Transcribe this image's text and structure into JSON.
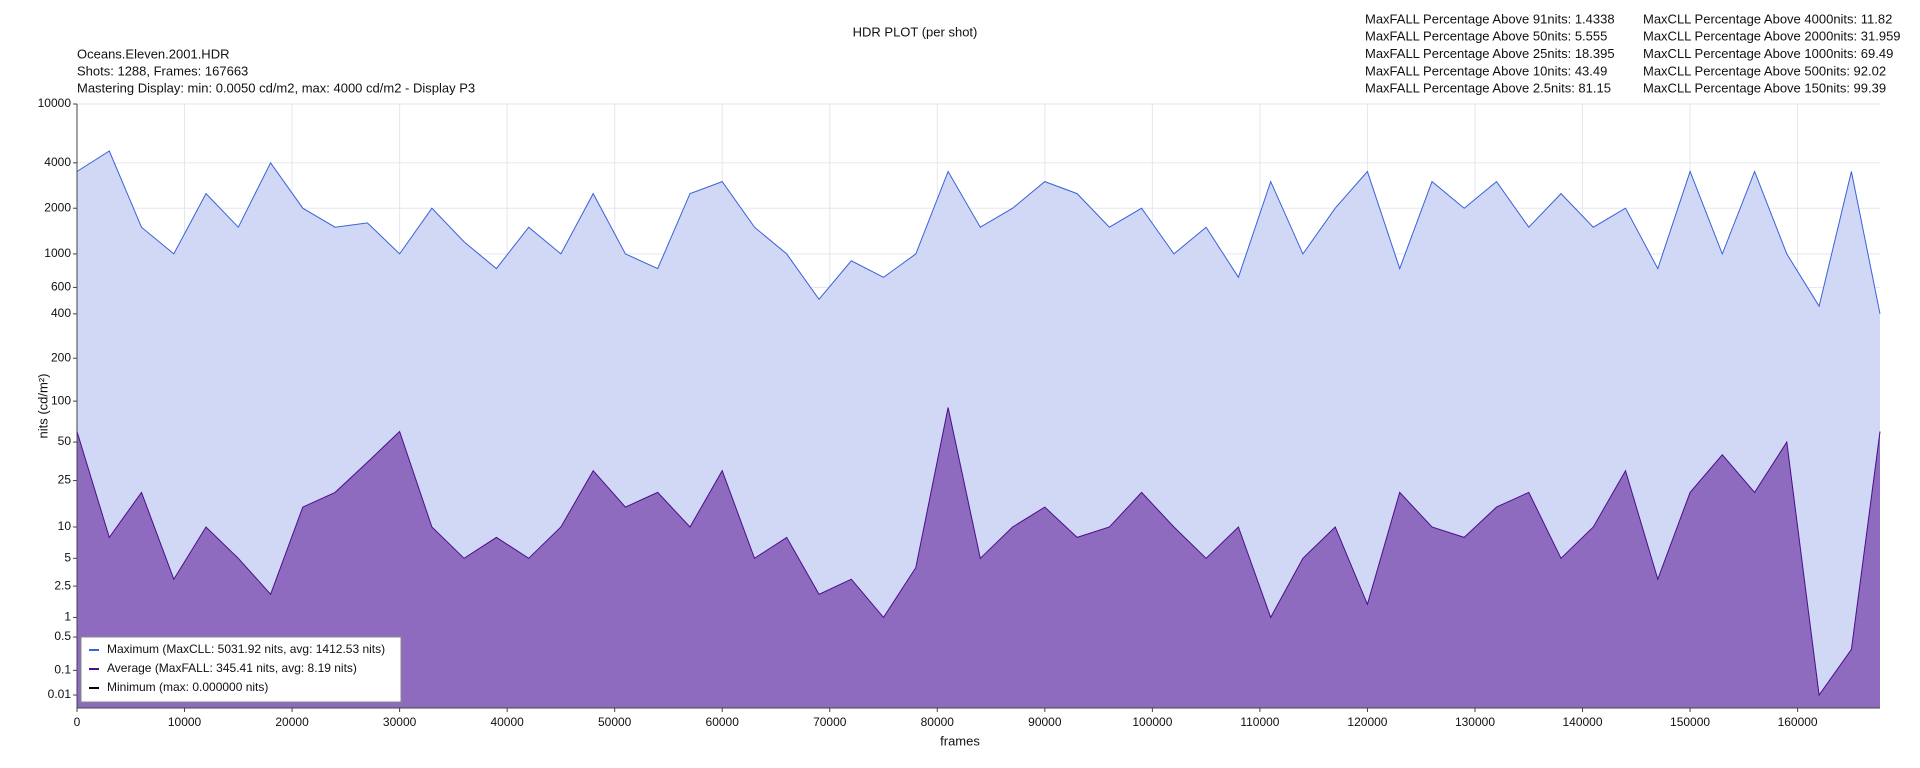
{
  "chart_data": {
    "type": "area",
    "title": "HDR PLOT (per shot)",
    "info": [
      "Oceans.Eleven.2001.HDR",
      "Shots:  1288, Frames: 167663",
      "Mastering Display: min: 0.0050 cd/m2, max: 4000 cd/m2 - Display P3"
    ],
    "maxfall_stats": [
      "MaxFALL Percentage Above  91nits: 1.4338",
      "MaxFALL Percentage Above  50nits: 5.555",
      "MaxFALL Percentage Above  25nits: 18.395",
      "MaxFALL Percentage Above  10nits: 43.49",
      "MaxFALL Percentage Above 2.5nits: 81.15"
    ],
    "maxcll_stats": [
      "MaxCLL Percentage Above 4000nits: 11.82",
      "MaxCLL Percentage Above 2000nits: 31.959",
      "MaxCLL Percentage Above 1000nits: 69.49",
      "MaxCLL Percentage Above   500nits: 92.02",
      "MaxCLL Percentage Above   150nits: 99.39"
    ],
    "xlabel": "frames",
    "ylabel": "nits (cd/m²)",
    "yscale": "pq",
    "grid": true,
    "legend": "lower left",
    "xlim": [
      0,
      167663
    ],
    "xticks": [
      0,
      10000,
      20000,
      30000,
      40000,
      50000,
      60000,
      70000,
      80000,
      90000,
      100000,
      110000,
      120000,
      130000,
      140000,
      150000,
      160000
    ],
    "ylim": [
      0,
      10000
    ],
    "yticks": [
      0.01,
      0.1,
      0.5,
      1,
      2.5,
      5,
      10,
      25,
      50,
      100,
      200,
      400,
      600,
      1000,
      2000,
      4000,
      10000
    ],
    "x": [
      0,
      3000,
      6000,
      9000,
      12000,
      15000,
      18000,
      21000,
      24000,
      27000,
      30000,
      33000,
      36000,
      39000,
      42000,
      45000,
      48000,
      51000,
      54000,
      57000,
      60000,
      63000,
      66000,
      69000,
      72000,
      75000,
      78000,
      81000,
      84000,
      87000,
      90000,
      93000,
      96000,
      99000,
      102000,
      105000,
      108000,
      111000,
      114000,
      117000,
      120000,
      123000,
      126000,
      129000,
      132000,
      135000,
      138000,
      141000,
      144000,
      147000,
      150000,
      153000,
      156000,
      159000,
      162000,
      165000,
      167663
    ],
    "series": [
      {
        "name": "Maximum (MaxCLL: 5031.92 nits, avg: 1412.53 nits)",
        "color": "#3a62d8",
        "fill_color": "#d0d8f5",
        "values": [
          3500,
          4800,
          1500,
          1000,
          2500,
          1500,
          4000,
          2000,
          1500,
          1600,
          1000,
          2000,
          1200,
          800,
          1500,
          1000,
          2500,
          1000,
          800,
          2500,
          3000,
          1500,
          1000,
          500,
          900,
          700,
          1000,
          3500,
          1500,
          2000,
          3000,
          2500,
          1500,
          2000,
          1000,
          1500,
          700,
          3000,
          1000,
          2000,
          3500,
          800,
          3000,
          2000,
          3000,
          1500,
          2500,
          1500,
          2000,
          800,
          3500,
          1000,
          3500,
          1000,
          450,
          3500,
          400
        ]
      },
      {
        "name": "Average (MaxFALL: 345.41 nits, avg: 8.19 nits)",
        "color": "#4b0f8a",
        "fill_color": "#8e6bbf",
        "values": [
          60,
          8,
          20,
          3,
          10,
          5,
          2,
          15,
          20,
          35,
          60,
          10,
          5,
          8,
          5,
          10,
          30,
          15,
          20,
          10,
          30,
          5,
          8,
          2,
          3,
          1,
          4,
          90,
          5,
          10,
          15,
          8,
          10,
          20,
          10,
          5,
          10,
          1,
          5,
          10,
          1.5,
          20,
          10,
          8,
          15,
          20,
          5,
          10,
          30,
          3,
          20,
          40,
          20,
          50,
          0.01,
          0.3,
          60
        ]
      },
      {
        "name": "Minimum (max: 0.000000 nits)",
        "color": "#000000",
        "values": [
          0,
          0,
          0,
          0,
          0,
          0,
          0,
          0,
          0,
          0,
          0,
          0,
          0,
          0,
          0,
          0,
          0,
          0,
          0,
          0,
          0,
          0,
          0,
          0,
          0,
          0,
          0,
          0,
          0,
          0,
          0,
          0,
          0,
          0,
          0,
          0,
          0,
          0,
          0,
          0,
          0,
          0,
          0,
          0,
          0,
          0,
          0,
          0,
          0,
          0,
          0,
          0,
          0,
          0,
          0,
          0,
          0
        ]
      }
    ]
  }
}
